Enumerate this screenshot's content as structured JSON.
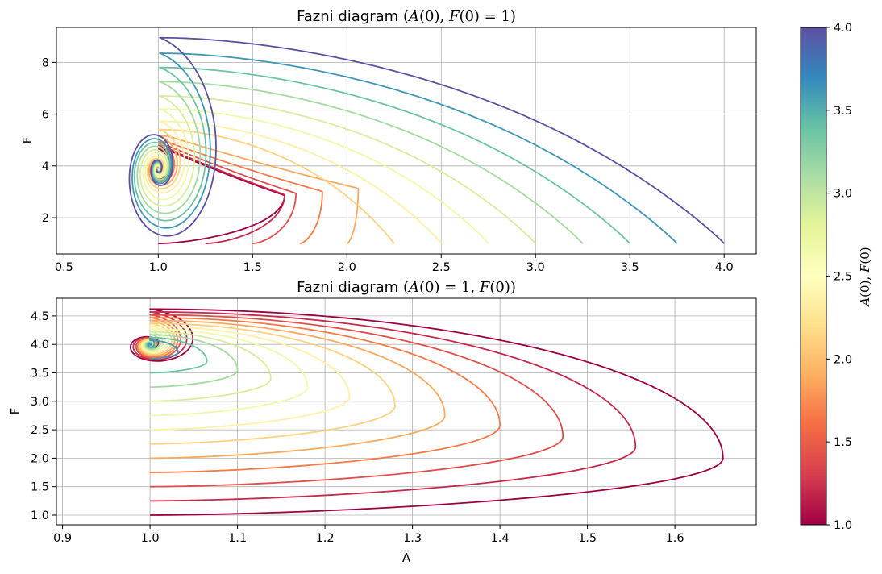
{
  "chart_data": [
    {
      "type": "line",
      "title": "Fazni diagram (A(0), F(0) = 1)",
      "xlabel": "",
      "ylabel": "F",
      "xlim": [
        0.46,
        4.17
      ],
      "ylim": [
        0.6,
        9.35
      ],
      "xticks": [
        0.5,
        1.0,
        1.5,
        2.0,
        2.5,
        3.0,
        3.5,
        4.0
      ],
      "yticks": [
        2,
        4,
        6,
        8
      ],
      "xtick_labels": [
        "0.5",
        "1.0",
        "1.5",
        "2.0",
        "2.5",
        "3.0",
        "3.5",
        "4.0"
      ],
      "ytick_labels": [
        "2",
        "4",
        "6",
        "8"
      ],
      "grid": true,
      "equilibrium": {
        "A": 1.0,
        "F": 3.9
      },
      "series": [
        {
          "initial": 1.0,
          "A0": 1.0,
          "F0": 1.0,
          "max_A": 1.67,
          "max_F": 4.62,
          "min_A": 0.92,
          "color": "#9e0142"
        },
        {
          "initial": 1.25,
          "A0": 1.25,
          "F0": 1.0,
          "max_A": 1.67,
          "max_F": 4.68,
          "min_A": 0.91,
          "color": "#c52a4c"
        },
        {
          "initial": 1.5,
          "A0": 1.5,
          "F0": 1.0,
          "max_A": 1.73,
          "max_F": 4.78,
          "min_A": 0.9,
          "color": "#e04f4a"
        },
        {
          "initial": 1.75,
          "A0": 1.75,
          "F0": 1.0,
          "max_A": 1.87,
          "max_F": 4.92,
          "min_A": 0.89,
          "color": "#f57a46"
        },
        {
          "initial": 2.0,
          "A0": 2.0,
          "F0": 1.0,
          "max_A": 2.06,
          "max_F": 5.15,
          "min_A": 0.87,
          "color": "#fca95c"
        },
        {
          "initial": 2.25,
          "A0": 2.25,
          "F0": 1.0,
          "max_A": 2.27,
          "max_F": 5.4,
          "min_A": 0.85,
          "color": "#fdd17e"
        },
        {
          "initial": 2.5,
          "A0": 2.5,
          "F0": 1.0,
          "max_A": 2.5,
          "max_F": 5.72,
          "min_A": 0.82,
          "color": "#fef0a6"
        },
        {
          "initial": 2.75,
          "A0": 2.75,
          "F0": 1.0,
          "max_A": 2.75,
          "max_F": 6.2,
          "min_A": 0.79,
          "color": "#f1f9a9"
        },
        {
          "initial": 3.0,
          "A0": 3.0,
          "F0": 1.0,
          "max_A": 3.0,
          "max_F": 6.7,
          "min_A": 0.75,
          "color": "#d6ee9b"
        },
        {
          "initial": 3.25,
          "A0": 3.25,
          "F0": 1.0,
          "max_A": 3.25,
          "max_F": 7.25,
          "min_A": 0.71,
          "color": "#a4da9f"
        },
        {
          "initial": 3.5,
          "A0": 3.5,
          "F0": 1.0,
          "max_A": 3.5,
          "max_F": 7.8,
          "min_A": 0.67,
          "color": "#6ec3a5"
        },
        {
          "initial": 3.75,
          "A0": 3.75,
          "F0": 1.0,
          "max_A": 3.75,
          "max_F": 8.35,
          "min_A": 0.64,
          "color": "#3f97b7"
        },
        {
          "initial": 4.0,
          "A0": 4.0,
          "F0": 1.0,
          "max_A": 4.0,
          "max_F": 8.95,
          "min_A": 0.6,
          "color": "#5e4fa2"
        }
      ]
    },
    {
      "type": "line",
      "title": "Fazni diagram (A(0) = 1, F(0))",
      "xlabel": "A",
      "ylabel": "F",
      "xlim": [
        0.893,
        1.693
      ],
      "ylim": [
        0.83,
        4.81
      ],
      "xticks": [
        0.9,
        1.0,
        1.1,
        1.2,
        1.3,
        1.4,
        1.5,
        1.6
      ],
      "yticks": [
        1.0,
        1.5,
        2.0,
        2.5,
        3.0,
        3.5,
        4.0,
        4.5
      ],
      "xtick_labels": [
        "0.9",
        "1.0",
        "1.1",
        "1.2",
        "1.3",
        "1.4",
        "1.5",
        "1.6"
      ],
      "ytick_labels": [
        "1.0",
        "1.5",
        "2.0",
        "2.5",
        "3.0",
        "3.5",
        "4.0",
        "4.5"
      ],
      "grid": true,
      "equilibrium": {
        "A": 1.0,
        "F": 4.0
      },
      "series": [
        {
          "initial": 1.0,
          "A0": 1.0,
          "F0": 1.0,
          "max_A": 1.655,
          "F_at_max_A": 2.0,
          "max_F": 4.62,
          "min_A": 0.93,
          "color": "#9e0142"
        },
        {
          "initial": 1.25,
          "A0": 1.0,
          "F0": 1.25,
          "max_A": 1.555,
          "F_at_max_A": 2.2,
          "max_F": 4.57,
          "min_A": 0.94,
          "color": "#c52a4c"
        },
        {
          "initial": 1.5,
          "A0": 1.0,
          "F0": 1.5,
          "max_A": 1.472,
          "F_at_max_A": 2.38,
          "max_F": 4.52,
          "min_A": 0.95,
          "color": "#e04f4a"
        },
        {
          "initial": 1.75,
          "A0": 1.0,
          "F0": 1.75,
          "max_A": 1.4,
          "F_at_max_A": 2.58,
          "max_F": 4.47,
          "min_A": 0.955,
          "color": "#f57a46"
        },
        {
          "initial": 2.0,
          "A0": 1.0,
          "F0": 2.0,
          "max_A": 1.337,
          "F_at_max_A": 2.75,
          "max_F": 4.42,
          "min_A": 0.96,
          "color": "#fca95c"
        },
        {
          "initial": 2.25,
          "A0": 1.0,
          "F0": 2.25,
          "max_A": 1.28,
          "F_at_max_A": 2.92,
          "max_F": 4.37,
          "min_A": 0.965,
          "color": "#fdd17e"
        },
        {
          "initial": 2.5,
          "A0": 1.0,
          "F0": 2.5,
          "max_A": 1.228,
          "F_at_max_A": 3.08,
          "max_F": 4.32,
          "min_A": 0.97,
          "color": "#fef0a6"
        },
        {
          "initial": 2.75,
          "A0": 1.0,
          "F0": 2.75,
          "max_A": 1.18,
          "F_at_max_A": 3.25,
          "max_F": 4.27,
          "min_A": 0.975,
          "color": "#f1f9a9"
        },
        {
          "initial": 3.0,
          "A0": 1.0,
          "F0": 3.0,
          "max_A": 1.138,
          "F_at_max_A": 3.4,
          "max_F": 4.22,
          "min_A": 0.98,
          "color": "#d6ee9b"
        },
        {
          "initial": 3.25,
          "A0": 1.0,
          "F0": 3.25,
          "max_A": 1.1,
          "F_at_max_A": 3.55,
          "max_F": 4.17,
          "min_A": 0.985,
          "color": "#a4da9f"
        },
        {
          "initial": 3.5,
          "A0": 1.0,
          "F0": 3.5,
          "max_A": 1.065,
          "F_at_max_A": 3.7,
          "max_F": 4.12,
          "min_A": 0.99,
          "color": "#6ec3a5"
        },
        {
          "initial": 3.75,
          "A0": 1.0,
          "F0": 3.75,
          "max_A": 1.032,
          "F_at_max_A": 3.86,
          "max_F": 4.07,
          "min_A": 0.995,
          "color": "#3f97b7"
        }
      ]
    }
  ],
  "colorbar": {
    "label": "A(0), F(0)",
    "range": [
      1.0,
      4.0
    ],
    "ticks": [
      1.0,
      1.5,
      2.0,
      2.5,
      3.0,
      3.5,
      4.0
    ],
    "tick_labels": [
      "1.0",
      "1.5",
      "2.0",
      "2.5",
      "3.0",
      "3.5",
      "4.0"
    ],
    "colormap": "Spectral",
    "stops": [
      {
        "value": 1.0,
        "color": "#9e0142"
      },
      {
        "value": 1.3,
        "color": "#d53e4f"
      },
      {
        "value": 1.6,
        "color": "#f46d43"
      },
      {
        "value": 1.9,
        "color": "#fdae61"
      },
      {
        "value": 2.2,
        "color": "#fee08b"
      },
      {
        "value": 2.5,
        "color": "#ffffbf"
      },
      {
        "value": 2.8,
        "color": "#e6f598"
      },
      {
        "value": 3.1,
        "color": "#abdda4"
      },
      {
        "value": 3.4,
        "color": "#66c2a5"
      },
      {
        "value": 3.7,
        "color": "#3288bd"
      },
      {
        "value": 4.0,
        "color": "#5e4fa2"
      }
    ]
  }
}
